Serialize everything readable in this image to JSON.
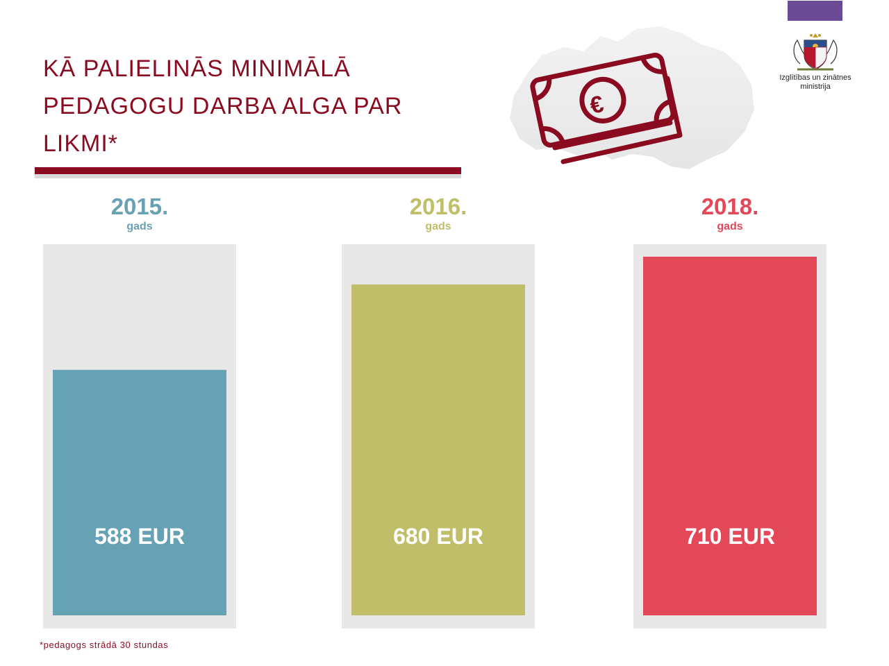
{
  "title": "KĀ PALIELINĀS MINIMĀLĀ PEDAGOGU DARBA ALGA PAR LIKMI*",
  "footnote": "*pedagogs strādā 30 stundas",
  "logo": {
    "ministry_line1": "Izglītības un zinātnes",
    "ministry_line2": "ministrija"
  },
  "icons": [
    "map-of-latvia-icon",
    "banknotes-euro-icon",
    "coat-of-arms-icon"
  ],
  "colors": {
    "brand": "#8a0a1f",
    "track": "#e8e8e9",
    "logo_bar": "#6b4a96"
  },
  "chart_data": {
    "type": "bar",
    "categories": [
      "2015.",
      "2016.",
      "2018."
    ],
    "category_sublabel": "gads",
    "values": [
      588,
      680,
      710
    ],
    "labels": [
      "588 EUR",
      "680 EUR",
      "710 EUR"
    ],
    "colors": [
      "#67a2b4",
      "#c0be69",
      "#e24857"
    ],
    "unit": "EUR",
    "grid": false,
    "legend": "none"
  }
}
